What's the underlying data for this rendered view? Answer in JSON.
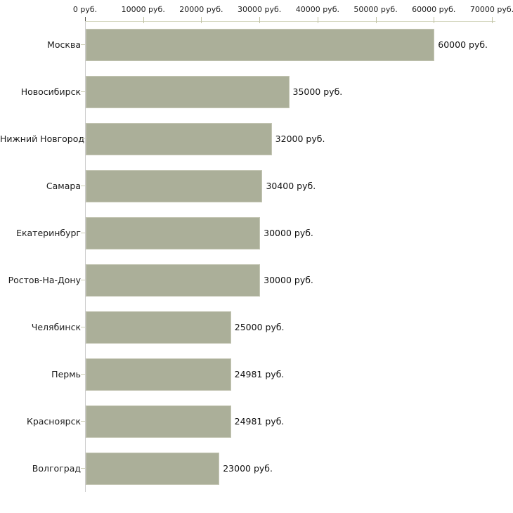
{
  "chart_data": {
    "type": "bar",
    "orientation": "horizontal",
    "title": "",
    "xlabel": "",
    "ylabel": "",
    "unit": "руб.",
    "legend": "none",
    "grid": "off",
    "categories": [
      "Москва",
      "Новосибирск",
      "Нижний Новгород",
      "Самара",
      "Екатеринбург",
      "Ростов-На-Дону",
      "Челябинск",
      "Пермь",
      "Красноярск",
      "Волгоград"
    ],
    "values": [
      60000,
      35000,
      32000,
      30400,
      30000,
      30000,
      25000,
      24981,
      24981,
      23000
    ],
    "value_labels": [
      "60000 руб.",
      "35000 руб.",
      "32000 руб.",
      "30400 руб.",
      "30000 руб.",
      "30000 руб.",
      "25000 руб.",
      "24981 руб.",
      "24981 руб.",
      "23000 руб."
    ],
    "x_axis": {
      "position": "top",
      "min": 0,
      "max": 70000,
      "tick_step": 10000,
      "ticks": [
        0,
        10000,
        20000,
        30000,
        40000,
        50000,
        60000,
        70000
      ],
      "tick_labels": [
        "0 руб.",
        "10000 руб.",
        "20000 руб.",
        "30000 руб.",
        "40000 руб.",
        "50000 руб.",
        "60000 руб.",
        "70000 руб."
      ]
    },
    "colors": {
      "bar_fill": "#abaf99",
      "bar_border": "#c4c6b4",
      "axis_line": "#d5d7c0",
      "tick_mark": "#c0c2a4",
      "zero_tick_mark": "#55554a",
      "vertical_axis_line": "#cbcbcb",
      "category_tick": "#cdcfb6",
      "text": "#1c1c1c",
      "background": "#ffffff"
    }
  }
}
